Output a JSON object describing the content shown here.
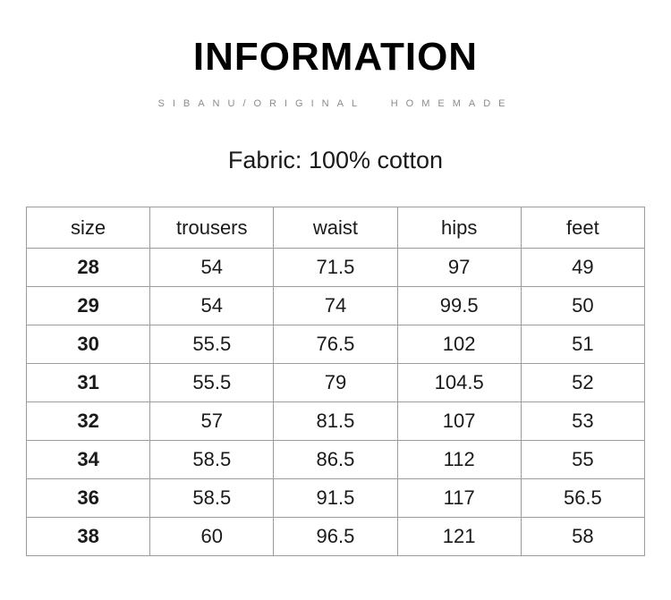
{
  "header": {
    "title": "INFORMATION",
    "subtitle": "SIBANU/ORIGINAL HOMEMADE"
  },
  "fabric": {
    "text": "Fabric: 100% cotton"
  },
  "size_table": {
    "columns": [
      "size",
      "trousers",
      "waist",
      "hips",
      "feet"
    ],
    "rows": [
      [
        "28",
        "54",
        "71.5",
        "97",
        "49"
      ],
      [
        "29",
        "54",
        "74",
        "99.5",
        "50"
      ],
      [
        "30",
        "55.5",
        "76.5",
        "102",
        "51"
      ],
      [
        "31",
        "55.5",
        "79",
        "104.5",
        "52"
      ],
      [
        "32",
        "57",
        "81.5",
        "107",
        "53"
      ],
      [
        "34",
        "58.5",
        "86.5",
        "112",
        "55"
      ],
      [
        "36",
        "58.5",
        "91.5",
        "117",
        "56.5"
      ],
      [
        "38",
        "60",
        "96.5",
        "121",
        "58"
      ]
    ]
  },
  "colors": {
    "title_text": "#000000",
    "subtitle_text": "#8c8c8c",
    "body_text": "#1a1a1a",
    "table_border": "#9c9c9c",
    "background": "#ffffff"
  }
}
